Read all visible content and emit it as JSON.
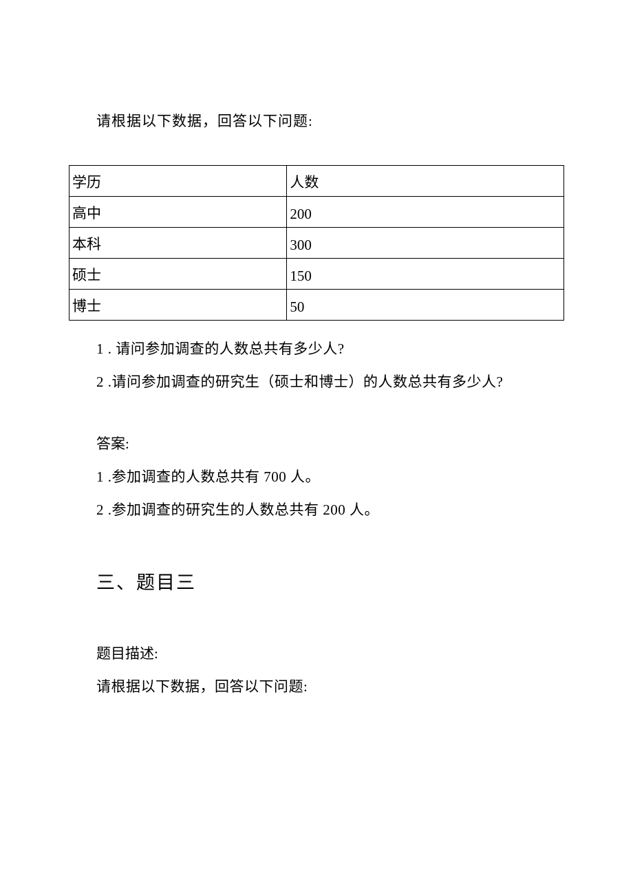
{
  "intro": "请根据以下数据，回答以下问题:",
  "table": {
    "header": {
      "col1": "学历",
      "col2": "人数"
    },
    "rows": [
      {
        "col1": "高中",
        "col2": "200"
      },
      {
        "col1": "本科",
        "col2": "300"
      },
      {
        "col1": "硕士",
        "col2": "150"
      },
      {
        "col1": "博士",
        "col2": "50"
      }
    ]
  },
  "questions": [
    "1 . 请问参加调查的人数总共有多少人?",
    "2 .请问参加调查的研究生（硕士和博士）的人数总共有多少人?"
  ],
  "answer_label": "答案:",
  "answers": [
    "1 .参加调查的人数总共有 700 人。",
    "2 .参加调查的研究生的人数总共有 200 人。"
  ],
  "section_title": "三、题目三",
  "desc_label": "题目描述:",
  "desc_text": "请根据以下数据，回答以下问题:"
}
